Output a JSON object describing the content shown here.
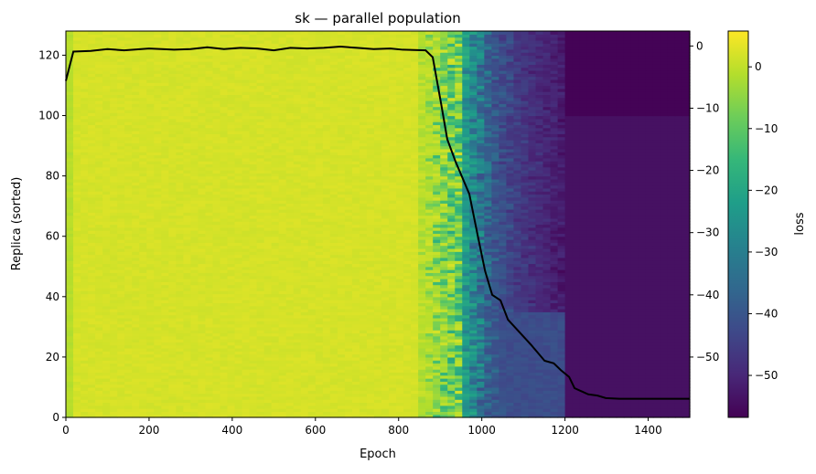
{
  "chart_data": {
    "type": "heatmap",
    "title": "sk — parallel population",
    "xlabel": "Epoch",
    "ylabel": "Replica (sorted)",
    "colorbar_label": "loss",
    "colormap": "viridis",
    "xlim": [
      0,
      1500
    ],
    "ylim": [
      0,
      128
    ],
    "right_ylim": [
      -59.7,
      2.4
    ],
    "color_range": [
      -56.8,
      5.8
    ],
    "x_ticks": [
      "0",
      "200",
      "400",
      "600",
      "800",
      "1000",
      "1200",
      "1400"
    ],
    "y_ticks": [
      "0",
      "20",
      "40",
      "60",
      "80",
      "100",
      "120"
    ],
    "right_y_ticks": [
      "0",
      "−10",
      "−20",
      "−30",
      "−40",
      "−50"
    ],
    "colorbar_ticks": [
      "0",
      "−10",
      "−20",
      "−30",
      "−40",
      "−50"
    ],
    "replicas": 128,
    "mean_line": {
      "color": "#000000",
      "axis": "right",
      "x": [
        0,
        18,
        60,
        100,
        140,
        200,
        260,
        300,
        340,
        380,
        420,
        460,
        500,
        540,
        580,
        620,
        660,
        700,
        740,
        780,
        810,
        865,
        882,
        902,
        917,
        937,
        970,
        990,
        1008,
        1025,
        1045,
        1063,
        1118,
        1151,
        1173,
        1190,
        1210,
        1223,
        1256,
        1278,
        1298,
        1331,
        1500
      ],
      "y": [
        -5.6,
        -0.9,
        -0.8,
        -0.5,
        -0.7,
        -0.4,
        -0.6,
        -0.5,
        -0.2,
        -0.5,
        -0.3,
        -0.4,
        -0.7,
        -0.3,
        -0.4,
        -0.3,
        -0.1,
        -0.3,
        -0.5,
        -0.4,
        -0.6,
        -0.7,
        -1.8,
        -9.2,
        -15.0,
        -18.6,
        -23.8,
        -30.4,
        -36.2,
        -40.0,
        -40.9,
        -44.0,
        -48.0,
        -50.6,
        -51.0,
        -52.1,
        -53.2,
        -55.0,
        -56.0,
        -56.2,
        -56.6,
        -56.7,
        -56.7
      ]
    }
  }
}
